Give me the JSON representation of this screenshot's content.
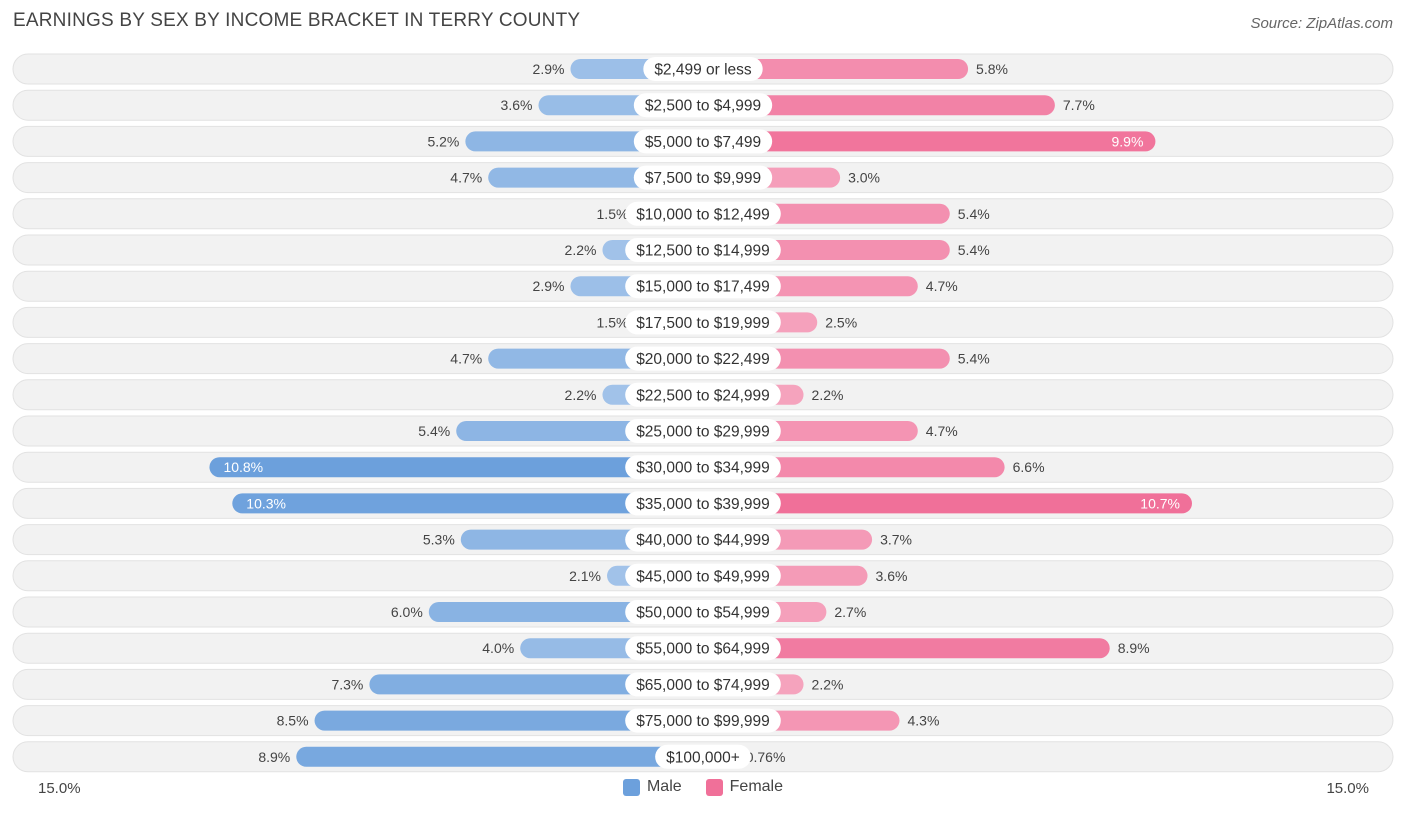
{
  "chart_data": {
    "type": "bar",
    "orientation": "horizontal-diverging",
    "title": "EARNINGS BY SEX BY INCOME BRACKET IN TERRY COUNTY",
    "source": "Source: ZipAtlas.com",
    "categories": [
      "$2,499 or less",
      "$2,500 to $4,999",
      "$5,000 to $7,499",
      "$7,500 to $9,999",
      "$10,000 to $12,499",
      "$12,500 to $14,999",
      "$15,000 to $17,499",
      "$17,500 to $19,999",
      "$20,000 to $22,499",
      "$22,500 to $24,999",
      "$25,000 to $29,999",
      "$30,000 to $34,999",
      "$35,000 to $39,999",
      "$40,000 to $44,999",
      "$45,000 to $49,999",
      "$50,000 to $54,999",
      "$55,000 to $64,999",
      "$65,000 to $74,999",
      "$75,000 to $99,999",
      "$100,000+"
    ],
    "series": [
      {
        "name": "Male",
        "color": "#6ca0dc",
        "values": [
          2.9,
          3.6,
          5.2,
          4.7,
          1.5,
          2.2,
          2.9,
          1.5,
          4.7,
          2.2,
          5.4,
          10.8,
          10.3,
          5.3,
          2.1,
          6.0,
          4.0,
          7.3,
          8.5,
          8.9
        ],
        "labels": [
          "2.9%",
          "3.6%",
          "5.2%",
          "4.7%",
          "1.5%",
          "2.2%",
          "2.9%",
          "1.5%",
          "4.7%",
          "2.2%",
          "5.4%",
          "10.8%",
          "10.3%",
          "5.3%",
          "2.1%",
          "6.0%",
          "4.0%",
          "7.3%",
          "8.5%",
          "8.9%"
        ]
      },
      {
        "name": "Female",
        "color": "#f07099",
        "values": [
          5.8,
          7.7,
          9.9,
          3.0,
          5.4,
          5.4,
          4.7,
          2.5,
          5.4,
          2.2,
          4.7,
          6.6,
          10.7,
          3.7,
          3.6,
          2.7,
          8.9,
          2.2,
          4.3,
          0.76
        ],
        "labels": [
          "5.8%",
          "7.7%",
          "9.9%",
          "3.0%",
          "5.4%",
          "5.4%",
          "4.7%",
          "2.5%",
          "5.4%",
          "2.2%",
          "4.7%",
          "6.6%",
          "10.7%",
          "3.7%",
          "3.6%",
          "2.7%",
          "8.9%",
          "2.2%",
          "4.3%",
          "0.76%"
        ]
      }
    ],
    "xlim": [
      -15.0,
      15.0
    ],
    "axis_left_label": "15.0%",
    "axis_right_label": "15.0%",
    "legend": [
      "Male",
      "Female"
    ],
    "legend_position": "bottom-center"
  }
}
